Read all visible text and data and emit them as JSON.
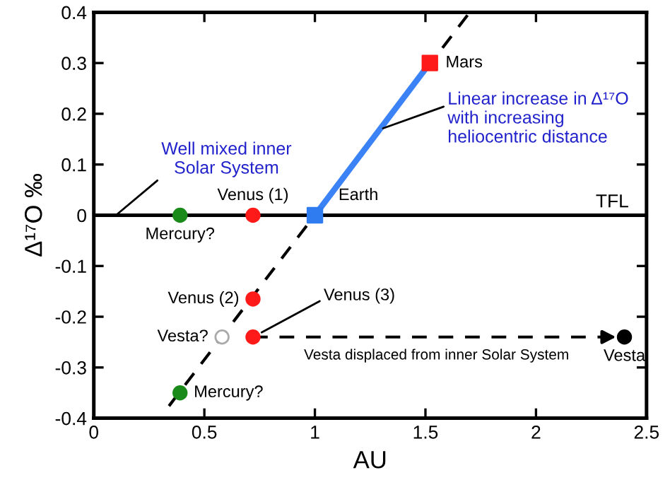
{
  "chart_data": {
    "type": "scatter",
    "xlabel": "AU",
    "ylabel": "Δ¹⁷O ‰",
    "xlim": [
      0,
      2.5
    ],
    "ylim": [
      -0.4,
      0.4
    ],
    "xticks": [
      0,
      0.5,
      1,
      1.5,
      2,
      2.5
    ],
    "yticks": [
      -0.4,
      -0.3,
      -0.2,
      -0.1,
      0,
      0.1,
      0.2,
      0.3,
      0.4
    ],
    "grid": false,
    "ref_lines": [
      {
        "axis": "y",
        "value": 0,
        "label": "TFL",
        "color": "#000000",
        "line_style": "solid"
      }
    ],
    "series": [
      {
        "type": "line",
        "color": "#000000",
        "line_style": "dashed",
        "marker": "none",
        "x": [
          0.34,
          1.7
        ],
        "values": [
          -0.376,
          0.4
        ]
      },
      {
        "type": "line",
        "color": "#3b82f6",
        "line_style": "solid",
        "marker": "none",
        "x": [
          1,
          1.52
        ],
        "values": [
          0,
          0.3
        ]
      },
      {
        "type": "line",
        "color": "#000000",
        "line_style": "dashed",
        "marker": "none",
        "x": [
          0.72,
          2.38
        ],
        "values": [
          -0.24,
          -0.24
        ]
      },
      {
        "color": "#1a8a1a",
        "marker": "circle",
        "x": [
          0.39,
          0.39
        ],
        "values": [
          0,
          -0.35
        ]
      },
      {
        "color": "#ff1a1a",
        "marker": "circle",
        "x": [
          0.72,
          0.72,
          0.72
        ],
        "values": [
          0,
          -0.165,
          -0.24
        ]
      },
      {
        "color": "#2f7bf0",
        "marker": "square",
        "x": [
          1
        ],
        "values": [
          0
        ]
      },
      {
        "color": "#ff1a1a",
        "marker": "square",
        "x": [
          1.52
        ],
        "values": [
          0.3
        ]
      },
      {
        "color": "#ffffff",
        "marker": "circle",
        "x": [
          0.58
        ],
        "values": [
          -0.24
        ]
      },
      {
        "color": "#000000",
        "marker": "circle",
        "x": [
          2.4
        ],
        "values": [
          -0.24
        ]
      }
    ],
    "annotations": [
      {
        "text": "Well mixed inner\nSolar System",
        "x": 0.1,
        "y": 0
      },
      {
        "text": "Linear increase in Δ¹⁷O\nwith increasing\nheliocentric distance",
        "x": 1.3,
        "y": 0.17
      },
      {
        "text": "Vesta displaced from inner Solar System",
        "x": 1.55,
        "y": -0.24
      },
      {
        "text": "Mercury?",
        "x": 0.39,
        "y": 0
      },
      {
        "text": "Venus (1)",
        "x": 0.72,
        "y": 0
      },
      {
        "text": "Earth",
        "x": 1,
        "y": 0
      },
      {
        "text": "Mars",
        "x": 1.52,
        "y": 0.3
      },
      {
        "text": "Venus (2)",
        "x": 0.72,
        "y": -0.165
      },
      {
        "text": "Venus (3)",
        "x": 0.72,
        "y": -0.24
      },
      {
        "text": "Vesta?",
        "x": 0.58,
        "y": -0.24
      },
      {
        "text": "Vesta",
        "x": 2.4,
        "y": -0.24
      },
      {
        "text": "Mercury?",
        "x": 0.39,
        "y": -0.35
      }
    ]
  }
}
